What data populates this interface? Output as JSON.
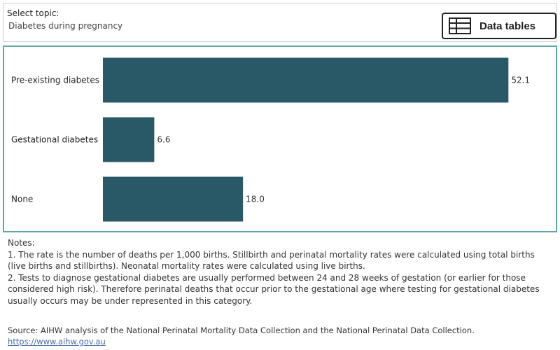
{
  "topic_selector": {
    "label": "Select topic:",
    "value": "Diabetes during pregnancy"
  },
  "data_tables_button": {
    "label": "Data tables",
    "icon": "table-icon"
  },
  "chart_data": {
    "type": "bar",
    "orientation": "horizontal",
    "categories": [
      "Pre-existing diabetes",
      "Gestational diabetes",
      "None"
    ],
    "values": [
      52.1,
      6.6,
      18.0
    ],
    "value_labels": [
      "52.1",
      "6.6",
      "18.0"
    ],
    "xlim": [
      0,
      54.5
    ],
    "grid": false,
    "legend": "none",
    "bar_color": "#295966"
  },
  "notes": {
    "heading": "Notes:",
    "items": [
      "1. The rate is the number of deaths per 1,000 births. Stillbirth and perinatal mortality rates were calculated using total births (live births and stillbirths). Neonatal mortality rates were calculated using live births.",
      "2. Tests to diagnose gestational diabetes are usually performed between 24 and 28 weeks of gestation (or earlier for those considered high risk). Therefore perinatal deaths that occur prior to the gestational age where testing for gestational diabetes usually occurs may be under represented in this category."
    ]
  },
  "source": {
    "text": "Source: AIHW analysis of the National Perinatal Mortality Data Collection and the National Perinatal Data Collection.",
    "link_text": "https://www.aihw.gov.au"
  },
  "colors": {
    "bar": "#295966",
    "panel_border": "#5ea8a3",
    "link": "#4a6fa8"
  }
}
